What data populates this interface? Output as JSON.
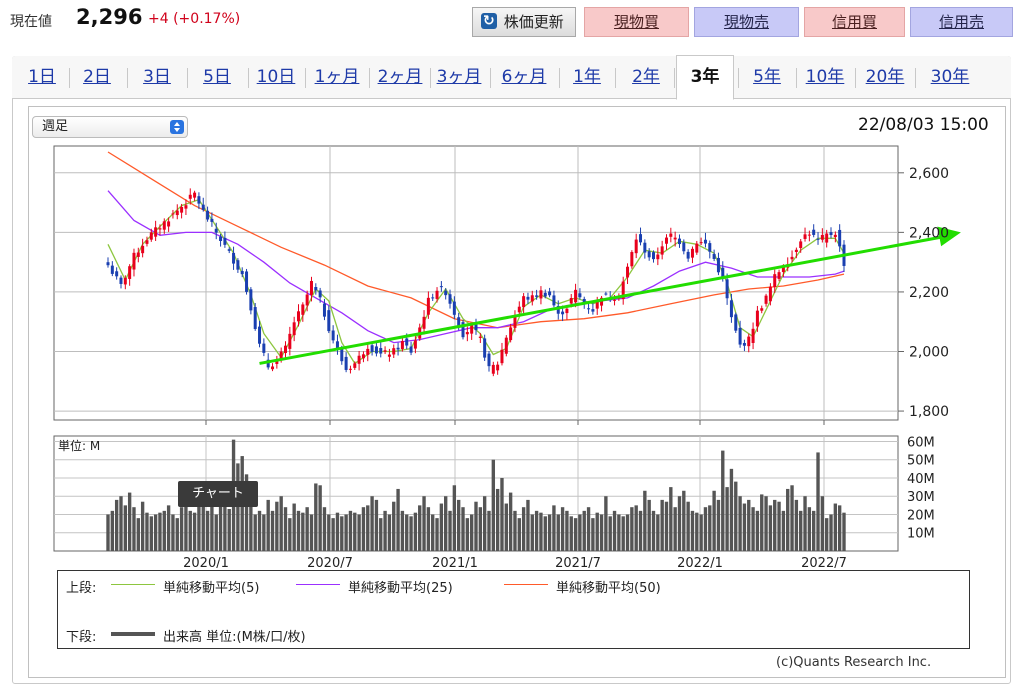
{
  "header": {
    "price_label": "現在値",
    "price": "2,296",
    "change_abs": "+4",
    "change_pct": "(+0.17%)",
    "refresh_label": "株価更新",
    "buttons": [
      "現物買",
      "現物売",
      "信用買",
      "信用売"
    ]
  },
  "colors": {
    "up": "#e8001c",
    "down": "#1a3fb0",
    "ma5": "#8dc63f",
    "ma25": "#9b30ff",
    "ma50": "#ff5a2a",
    "trend": "#22dd00",
    "volume": "#555555"
  },
  "tabs": {
    "items": [
      "1日",
      "2日",
      "3日",
      "5日",
      "10日",
      "1ヶ月",
      "2ヶ月",
      "3ヶ月",
      "6ヶ月",
      "1年",
      "2年",
      "3年",
      "5年",
      "10年",
      "20年",
      "30年"
    ],
    "active": "3年"
  },
  "select": {
    "value": "週足"
  },
  "timestamp": "22/08/03 15:00",
  "tooltip": "チャート",
  "legend": {
    "upper_label": "上段:",
    "lower_label": "下段:",
    "ma5": "単純移動平均(5)",
    "ma25": "単純移動平均(25)",
    "ma50": "単純移動平均(50)",
    "volume": "出来高 単位:(M株/口/枚)"
  },
  "copyright": "(c)Quants Research Inc.",
  "chart_data": {
    "type": "candlestick",
    "price": {
      "y_ticks": [
        1800,
        2000,
        2200,
        2400,
        2600
      ],
      "y_tick_labels": [
        "1,800",
        "2,000",
        "2,200",
        "2,400",
        "2,600"
      ],
      "ylim": [
        1770,
        2690
      ]
    },
    "volume": {
      "unit_label": "単位: M",
      "y_ticks": [
        10,
        20,
        30,
        40,
        50,
        60
      ],
      "y_tick_labels": [
        "10M",
        "20M",
        "30M",
        "40M",
        "50M",
        "60M"
      ],
      "ylim": [
        0,
        63
      ]
    },
    "x_tick_labels": [
      "2020/1",
      "2020/7",
      "2021/1",
      "2021/7",
      "2022/1",
      "2022/7"
    ],
    "close_path": [
      [
        0,
        2290
      ],
      [
        3,
        2220
      ],
      [
        6,
        2320
      ],
      [
        9,
        2380
      ],
      [
        12,
        2420
      ],
      [
        15,
        2460
      ],
      [
        18,
        2500
      ],
      [
        20,
        2530
      ],
      [
        22,
        2470
      ],
      [
        25,
        2400
      ],
      [
        28,
        2330
      ],
      [
        31,
        2260
      ],
      [
        33,
        2150
      ],
      [
        35,
        2020
      ],
      [
        37,
        1950
      ],
      [
        39,
        1970
      ],
      [
        41,
        2010
      ],
      [
        43,
        2100
      ],
      [
        45,
        2150
      ],
      [
        47,
        2230
      ],
      [
        49,
        2170
      ],
      [
        51,
        2080
      ],
      [
        53,
        2000
      ],
      [
        55,
        1940
      ],
      [
        57,
        1960
      ],
      [
        60,
        2020
      ],
      [
        63,
        1990
      ],
      [
        66,
        2000
      ],
      [
        68,
        2030
      ],
      [
        70,
        2000
      ],
      [
        72,
        2080
      ],
      [
        74,
        2170
      ],
      [
        76,
        2210
      ],
      [
        78,
        2200
      ],
      [
        80,
        2130
      ],
      [
        82,
        2060
      ],
      [
        84,
        2080
      ],
      [
        86,
        2040
      ],
      [
        88,
        1940
      ],
      [
        90,
        1960
      ],
      [
        92,
        2050
      ],
      [
        94,
        2120
      ],
      [
        96,
        2180
      ],
      [
        98,
        2180
      ],
      [
        100,
        2200
      ],
      [
        102,
        2190
      ],
      [
        104,
        2120
      ],
      [
        106,
        2150
      ],
      [
        108,
        2200
      ],
      [
        110,
        2160
      ],
      [
        112,
        2140
      ],
      [
        114,
        2190
      ],
      [
        116,
        2180
      ],
      [
        118,
        2190
      ],
      [
        120,
        2280
      ],
      [
        122,
        2380
      ],
      [
        124,
        2340
      ],
      [
        126,
        2300
      ],
      [
        128,
        2360
      ],
      [
        130,
        2390
      ],
      [
        132,
        2370
      ],
      [
        134,
        2320
      ],
      [
        136,
        2370
      ],
      [
        138,
        2360
      ],
      [
        140,
        2310
      ],
      [
        142,
        2240
      ],
      [
        144,
        2110
      ],
      [
        146,
        2020
      ],
      [
        148,
        2040
      ],
      [
        150,
        2130
      ],
      [
        152,
        2180
      ],
      [
        154,
        2250
      ],
      [
        156,
        2290
      ],
      [
        158,
        2320
      ],
      [
        160,
        2380
      ],
      [
        162,
        2400
      ],
      [
        164,
        2370
      ],
      [
        166,
        2390
      ],
      [
        168,
        2400
      ],
      [
        170,
        2296
      ]
    ],
    "ma5_path": [
      [
        0,
        2360
      ],
      [
        4,
        2240
      ],
      [
        8,
        2360
      ],
      [
        12,
        2420
      ],
      [
        17,
        2490
      ],
      [
        21,
        2510
      ],
      [
        25,
        2420
      ],
      [
        29,
        2330
      ],
      [
        33,
        2190
      ],
      [
        36,
        2060
      ],
      [
        40,
        1980
      ],
      [
        44,
        2090
      ],
      [
        48,
        2210
      ],
      [
        51,
        2170
      ],
      [
        54,
        2030
      ],
      [
        57,
        1960
      ],
      [
        61,
        2000
      ],
      [
        66,
        2000
      ],
      [
        70,
        2010
      ],
      [
        74,
        2130
      ],
      [
        78,
        2210
      ],
      [
        82,
        2110
      ],
      [
        86,
        2060
      ],
      [
        89,
        1990
      ],
      [
        92,
        2010
      ],
      [
        96,
        2150
      ],
      [
        100,
        2190
      ],
      [
        104,
        2160
      ],
      [
        108,
        2180
      ],
      [
        112,
        2160
      ],
      [
        116,
        2180
      ],
      [
        120,
        2250
      ],
      [
        124,
        2340
      ],
      [
        128,
        2330
      ],
      [
        132,
        2370
      ],
      [
        136,
        2360
      ],
      [
        140,
        2330
      ],
      [
        143,
        2230
      ],
      [
        146,
        2080
      ],
      [
        149,
        2050
      ],
      [
        152,
        2140
      ],
      [
        156,
        2260
      ],
      [
        160,
        2340
      ],
      [
        164,
        2380
      ],
      [
        168,
        2380
      ],
      [
        170,
        2330
      ]
    ],
    "ma25_path": [
      [
        0,
        2540
      ],
      [
        6,
        2440
      ],
      [
        12,
        2390
      ],
      [
        18,
        2400
      ],
      [
        24,
        2400
      ],
      [
        30,
        2360
      ],
      [
        36,
        2300
      ],
      [
        42,
        2230
      ],
      [
        48,
        2180
      ],
      [
        54,
        2130
      ],
      [
        60,
        2070
      ],
      [
        66,
        2030
      ],
      [
        72,
        2040
      ],
      [
        78,
        2060
      ],
      [
        84,
        2080
      ],
      [
        90,
        2080
      ],
      [
        96,
        2100
      ],
      [
        102,
        2140
      ],
      [
        108,
        2160
      ],
      [
        114,
        2170
      ],
      [
        120,
        2180
      ],
      [
        126,
        2220
      ],
      [
        132,
        2270
      ],
      [
        138,
        2300
      ],
      [
        144,
        2280
      ],
      [
        150,
        2250
      ],
      [
        156,
        2250
      ],
      [
        162,
        2250
      ],
      [
        168,
        2260
      ],
      [
        170,
        2270
      ]
    ],
    "ma50_path": [
      [
        0,
        2670
      ],
      [
        10,
        2580
      ],
      [
        20,
        2490
      ],
      [
        30,
        2420
      ],
      [
        40,
        2350
      ],
      [
        50,
        2290
      ],
      [
        60,
        2220
      ],
      [
        70,
        2180
      ],
      [
        80,
        2110
      ],
      [
        90,
        2080
      ],
      [
        100,
        2100
      ],
      [
        110,
        2110
      ],
      [
        120,
        2130
      ],
      [
        130,
        2160
      ],
      [
        140,
        2190
      ],
      [
        148,
        2210
      ],
      [
        156,
        2220
      ],
      [
        164,
        2240
      ],
      [
        170,
        2260
      ]
    ],
    "trendline": {
      "from": [
        35,
        1960
      ],
      "to": [
        197,
        2400
      ]
    },
    "volume_values": [
      20,
      22,
      28,
      30,
      25,
      32,
      24,
      18,
      27,
      21,
      19,
      20,
      21,
      22,
      25,
      20,
      18,
      24,
      26,
      22,
      21,
      30,
      28,
      22,
      26,
      20,
      25,
      35,
      23,
      61,
      48,
      52,
      42,
      30,
      20,
      22,
      20,
      28,
      22,
      27,
      30,
      24,
      18,
      26,
      22,
      21,
      24,
      20,
      37,
      36,
      24,
      20,
      18,
      21,
      19,
      20,
      22,
      21,
      20,
      24,
      25,
      30,
      28,
      18,
      22,
      20,
      27,
      34,
      22,
      20,
      19,
      21,
      25,
      30,
      24,
      20,
      18,
      26,
      30,
      22,
      36,
      28,
      24,
      18,
      20,
      27,
      24,
      30,
      22,
      50,
      34,
      40,
      26,
      32,
      22,
      18,
      24,
      28,
      20,
      22,
      21,
      19,
      20,
      25,
      20,
      24,
      22,
      19,
      18,
      20,
      22,
      24,
      18,
      21,
      20,
      30,
      19,
      22,
      20,
      19,
      20,
      24,
      25,
      22,
      33,
      28,
      22,
      20,
      28,
      27,
      35,
      24,
      30,
      33,
      27,
      22,
      21,
      20,
      24,
      25,
      33,
      28,
      55,
      35,
      45,
      38,
      30,
      26,
      28,
      24,
      22,
      31,
      30,
      25,
      28,
      27,
      22,
      34,
      36,
      28,
      22,
      30,
      24,
      22,
      54,
      30,
      18,
      20,
      26,
      25,
      21
    ]
  }
}
